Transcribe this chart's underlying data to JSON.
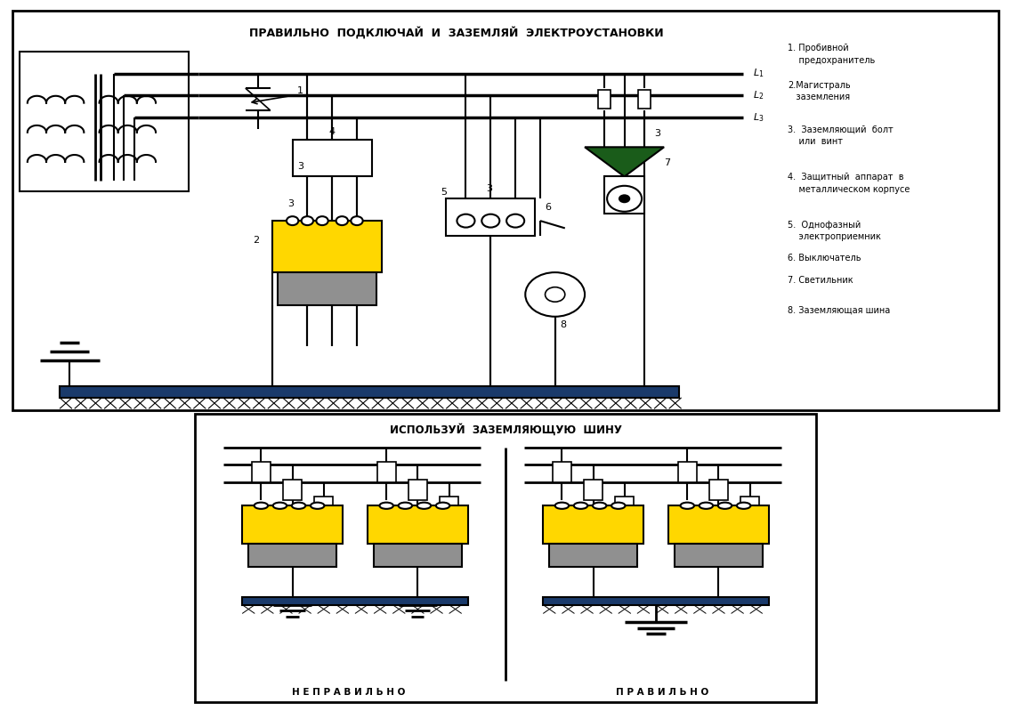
{
  "title_top": "ПРАВИЛЬНО  ПОДКЛЮЧАЙ  И  ЗАЗЕМЛЯЙ  ЭЛЕКТРОУСТАНОВКИ",
  "title_bottom": "ИСПОЛЬЗУЙ  ЗАЗЕМЛЯЮЩУЮ  ШИНУ",
  "label_nepravilno": "Н Е П Р А В И Л Ь Н О",
  "label_pravilno": "П Р А В И Л Ь Н О",
  "legend": [
    "1. Пробивной\n    предохранитель",
    "2.Магистраль\n   заземления",
    "3.  Заземляющий  болт\n    или  винт",
    "4.  Защитный  аппарат  в\n    металлическом корпусе",
    "5.  Однофазный\n    электроприемник",
    "6. Выключатель",
    "7. Светильник",
    "8. Заземляющая шина"
  ],
  "bg_color": "#ffffff",
  "lc": "#000000",
  "yc": "#FFD700",
  "gc": "#909090",
  "dc": "#1a3a6b",
  "green": "#1a5c1a"
}
